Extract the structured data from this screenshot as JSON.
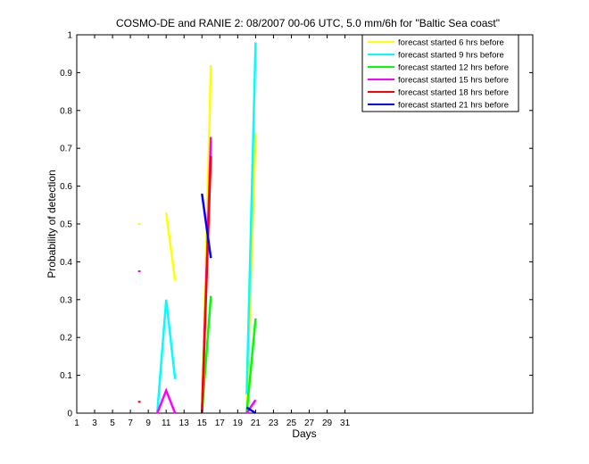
{
  "chart_data": {
    "type": "line",
    "title": "COSMO-DE and RANIE 2: 08/2007 00-06 UTC, 5.0 mm/6h for \"Baltic Sea coast\"",
    "xlabel": "Days",
    "ylabel": "Probability of detection",
    "xlim": [
      1,
      52
    ],
    "ylim": [
      0,
      1
    ],
    "xticks": [
      1,
      3,
      5,
      7,
      9,
      11,
      13,
      15,
      17,
      19,
      21,
      23,
      25,
      27,
      29,
      31
    ],
    "xtick_labels": [
      "1",
      "3",
      "5",
      "7",
      "9",
      "11",
      "13",
      "15",
      "17",
      "19",
      "21",
      "23",
      "25",
      "27",
      "29",
      "31"
    ],
    "yticks": [
      0,
      0.1,
      0.2,
      0.3,
      0.4,
      0.5,
      0.6,
      0.7,
      0.8,
      0.9,
      1
    ],
    "ytick_labels": [
      "0",
      "0.1",
      "0.2",
      "0.3",
      "0.4",
      "0.5",
      "0.6",
      "0.7",
      "0.8",
      "0.9",
      "1"
    ],
    "legend_position": "top-right",
    "series": [
      {
        "name": "forecast started 6 hrs before",
        "color": "#ffff00",
        "segments": [
          [
            [
              8,
              0.5
            ]
          ],
          [
            [
              11,
              0.53
            ],
            [
              12,
              0.35
            ]
          ],
          [
            [
              15,
              0.0
            ],
            [
              16,
              0.92
            ]
          ],
          [
            [
              20,
              0.02
            ],
            [
              21,
              0.74
            ]
          ]
        ]
      },
      {
        "name": "forecast started 9 hrs before",
        "color": "#00ffff",
        "segments": [
          [
            [
              10,
              0.0
            ],
            [
              11,
              0.3
            ],
            [
              12,
              0.09
            ]
          ],
          [
            [
              15,
              0.0
            ],
            [
              16,
              0.72
            ]
          ],
          [
            [
              20,
              0.05
            ],
            [
              21,
              0.98
            ]
          ]
        ]
      },
      {
        "name": "forecast started 12 hrs before",
        "color": "#00ff00",
        "segments": [
          [
            [
              15,
              0.0
            ],
            [
              16,
              0.31
            ]
          ],
          [
            [
              20,
              0.0
            ],
            [
              21,
              0.25
            ]
          ]
        ]
      },
      {
        "name": "forecast started 15 hrs before",
        "color": "#ff00ff",
        "segments": [
          [
            [
              8,
              0.375
            ]
          ],
          [
            [
              10,
              0.0
            ],
            [
              11,
              0.06
            ],
            [
              12,
              0.0
            ]
          ],
          [
            [
              15,
              0.0
            ],
            [
              16,
              0.73
            ]
          ],
          [
            [
              20,
              0.0
            ],
            [
              21,
              0.035
            ]
          ]
        ]
      },
      {
        "name": "forecast started 18 hrs before",
        "color": "#ff0000",
        "segments": [
          [
            [
              8,
              0.03
            ]
          ],
          [
            [
              15,
              0.0
            ],
            [
              16,
              0.68
            ]
          ]
        ]
      },
      {
        "name": "forecast started 21 hrs before",
        "color": "#0000ff",
        "segments": [
          [
            [
              15,
              0.58
            ],
            [
              16,
              0.41
            ]
          ],
          [
            [
              20,
              0.015
            ],
            [
              21,
              0.0
            ]
          ]
        ]
      }
    ]
  }
}
